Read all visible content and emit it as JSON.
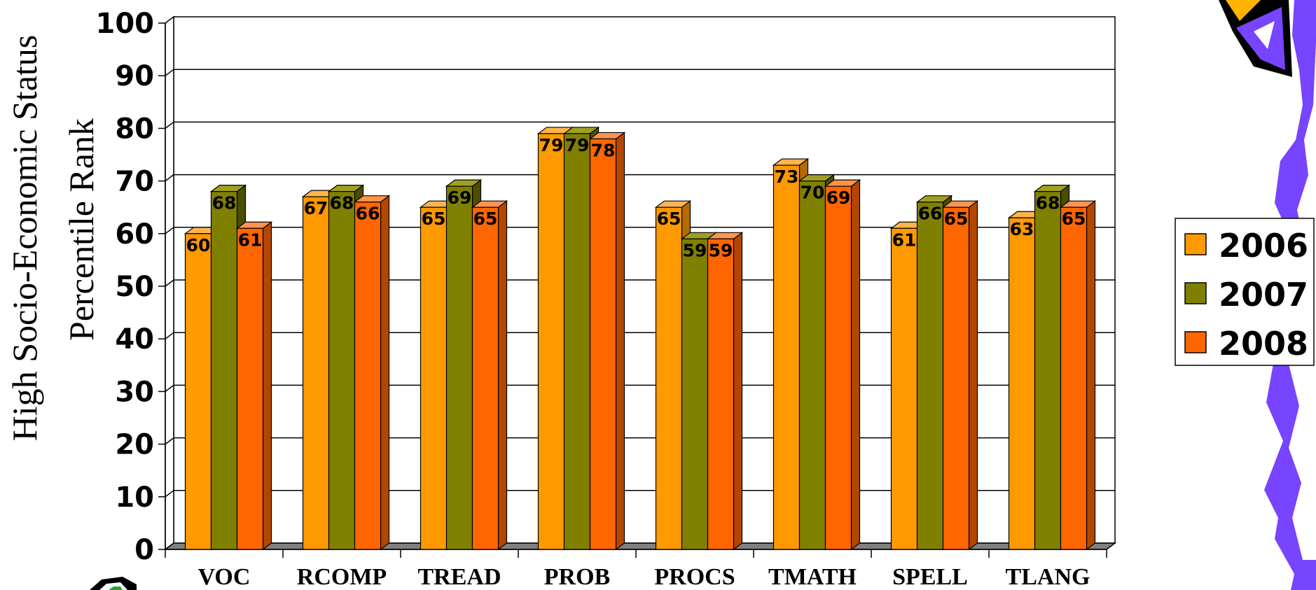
{
  "chart_data": {
    "type": "bar",
    "ylabel_line1": "High Socio-Economic Status",
    "ylabel_line2": "Percentile Rank",
    "ylim": [
      0,
      100
    ],
    "yticks": [
      "0",
      "10",
      "20",
      "30",
      "40",
      "50",
      "60",
      "70",
      "80",
      "90",
      "100"
    ],
    "categories": [
      "VOC",
      "RCOMP",
      "TREAD",
      "PROB",
      "PROCS",
      "TMATH",
      "SPELL",
      "TLANG"
    ],
    "series": [
      {
        "name": "2006",
        "color": "#FF9900",
        "values": [
          60,
          67,
          65,
          79,
          65,
          73,
          61,
          63
        ]
      },
      {
        "name": "2007",
        "color": "#808000",
        "values": [
          68,
          68,
          69,
          79,
          59,
          70,
          66,
          68
        ]
      },
      {
        "name": "2008",
        "color": "#FF6600",
        "values": [
          61,
          66,
          65,
          78,
          59,
          69,
          65,
          65
        ]
      }
    ],
    "grid": true,
    "legend_position": "right",
    "data_labels": true
  },
  "decoration": {
    "right_edge_color": "#7744FF",
    "corner_logo_color": "#000000"
  }
}
